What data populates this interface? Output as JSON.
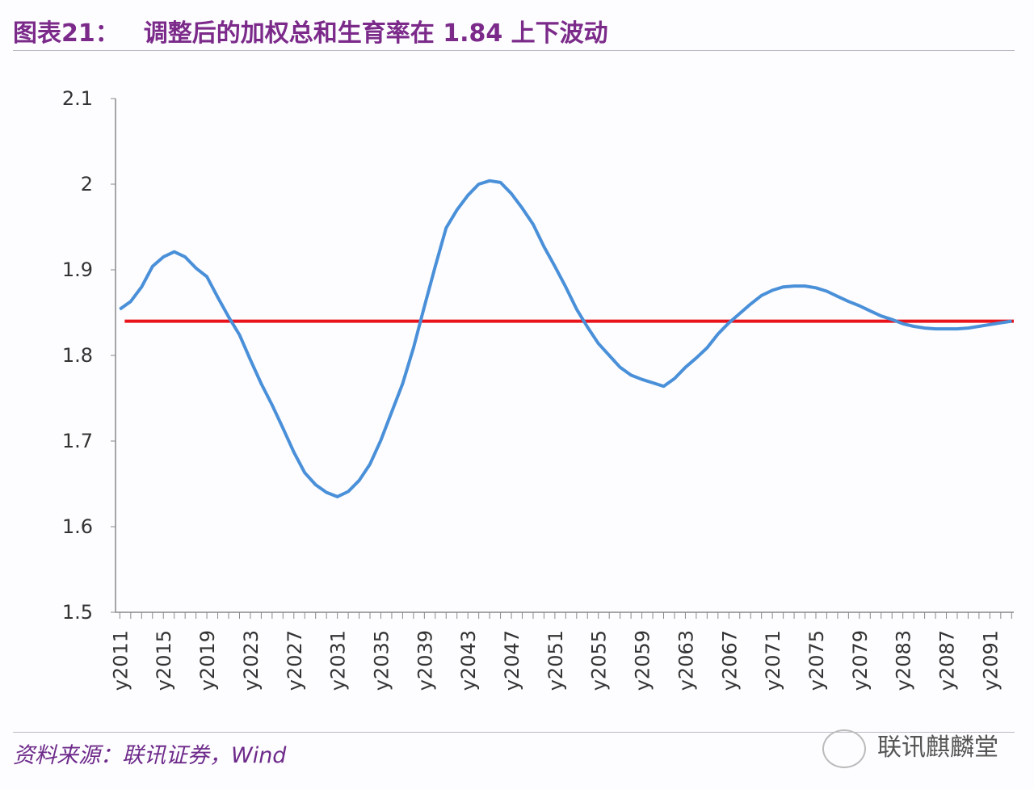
{
  "header": {
    "label": "图表21：",
    "title": "调整后的加权总和生育率在 1.84 上下波动"
  },
  "footer": {
    "source": "资料来源：联讯证券，Wind",
    "watermark": "联讯麒麟堂"
  },
  "chart_data": {
    "type": "line",
    "title": "调整后的加权总和生育率在 1.84 上下波动",
    "xlabel": "",
    "ylabel": "",
    "ylim": [
      1.5,
      2.1
    ],
    "yticks": [
      "1.5",
      "1.6",
      "1.7",
      "1.8",
      "1.9",
      "2",
      "2.1"
    ],
    "xtick_labels": [
      "y2011",
      "y2015",
      "y2019",
      "y2023",
      "y2027",
      "y2031",
      "y2035",
      "y2039",
      "y2043",
      "y2047",
      "y2051",
      "y2055",
      "y2059",
      "y2063",
      "y2067",
      "y2071",
      "y2075",
      "y2079",
      "y2083",
      "y2087",
      "y2091"
    ],
    "grid": false,
    "x": [
      2011,
      2012,
      2013,
      2014,
      2015,
      2016,
      2017,
      2018,
      2019,
      2020,
      2021,
      2022,
      2023,
      2024,
      2025,
      2026,
      2027,
      2028,
      2029,
      2030,
      2031,
      2032,
      2033,
      2034,
      2035,
      2036,
      2037,
      2038,
      2039,
      2040,
      2041,
      2042,
      2043,
      2044,
      2045,
      2046,
      2047,
      2048,
      2049,
      2050,
      2051,
      2052,
      2053,
      2054,
      2055,
      2056,
      2057,
      2058,
      2059,
      2060,
      2061,
      2062,
      2063,
      2064,
      2065,
      2066,
      2067,
      2068,
      2069,
      2070,
      2071,
      2072,
      2073,
      2074,
      2075,
      2076,
      2077,
      2078,
      2079,
      2080,
      2081,
      2082,
      2083,
      2084,
      2085,
      2086,
      2087,
      2088,
      2089,
      2090,
      2091,
      2092,
      2093
    ],
    "series": [
      {
        "color": "#4a90d9",
        "values": [
          1.854,
          1.863,
          1.88,
          1.904,
          1.915,
          1.921,
          1.915,
          1.902,
          1.892,
          1.868,
          1.845,
          1.824,
          1.795,
          1.767,
          1.742,
          1.715,
          1.687,
          1.663,
          1.649,
          1.64,
          1.635,
          1.641,
          1.654,
          1.673,
          1.701,
          1.734,
          1.767,
          1.809,
          1.857,
          1.904,
          1.949,
          1.97,
          1.987,
          2.0,
          2.004,
          2.002,
          1.989,
          1.972,
          1.953,
          1.927,
          1.904,
          1.88,
          1.854,
          1.833,
          1.814,
          1.8,
          1.786,
          1.777,
          1.772,
          1.768,
          1.764,
          1.773,
          1.786,
          1.797,
          1.809,
          1.825,
          1.838,
          1.849,
          1.86,
          1.87,
          1.876,
          1.88,
          1.881,
          1.881,
          1.879,
          1.875,
          1.869,
          1.863,
          1.858,
          1.852,
          1.846,
          1.842,
          1.837,
          1.834,
          1.832,
          1.831,
          1.831,
          1.831,
          1.832,
          1.834,
          1.836,
          1.838,
          1.84
        ]
      },
      {
        "color": "#e8131b",
        "values": "constant",
        "constant": 1.84
      }
    ]
  }
}
